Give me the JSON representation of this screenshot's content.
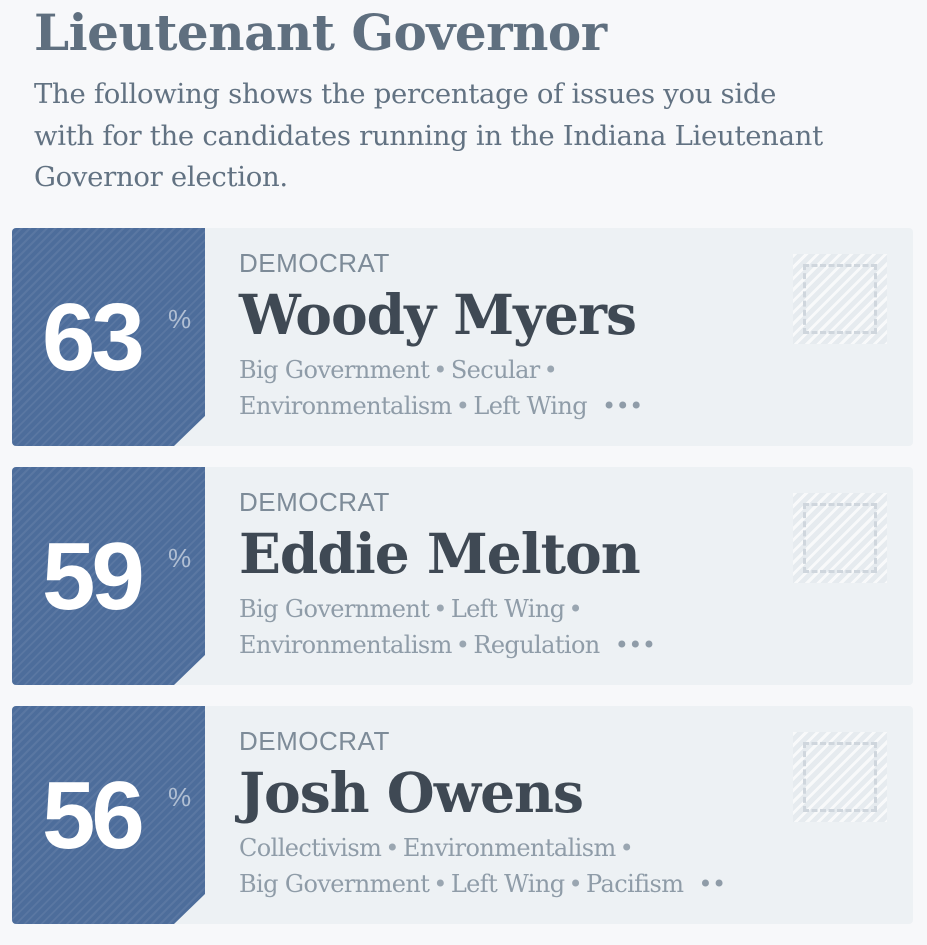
{
  "header": {
    "title": "Lieutenant Governor",
    "intro_line1": "The following shows the percentage of issues you side",
    "intro_line2": "with for the candidates running in the Indiana Lieutenant",
    "intro_line3": "Governor election."
  },
  "percent_symbol": "%",
  "colors": {
    "score_box": "#4d6d9b",
    "card_background": "#edf1f4",
    "page_background": "#f7f8fa",
    "name_text": "#3f4954"
  },
  "candidates": [
    {
      "score": "63",
      "party": "DEMOCRAT",
      "name": "Woody Myers",
      "tags_line1": [
        "Big Government",
        "Secular"
      ],
      "tags_line2": [
        "Environmentalism",
        "Left Wing"
      ],
      "more": "•••"
    },
    {
      "score": "59",
      "party": "DEMOCRAT",
      "name": "Eddie Melton",
      "tags_line1": [
        "Big Government",
        "Left Wing"
      ],
      "tags_line2": [
        "Environmentalism",
        "Regulation"
      ],
      "more": "•••"
    },
    {
      "score": "56",
      "party": "DEMOCRAT",
      "name": "Josh Owens",
      "tags_line1": [
        "Collectivism",
        "Environmentalism"
      ],
      "tags_line2": [
        "Big Government",
        "Left Wing",
        "Pacifism"
      ],
      "more": "••"
    }
  ]
}
